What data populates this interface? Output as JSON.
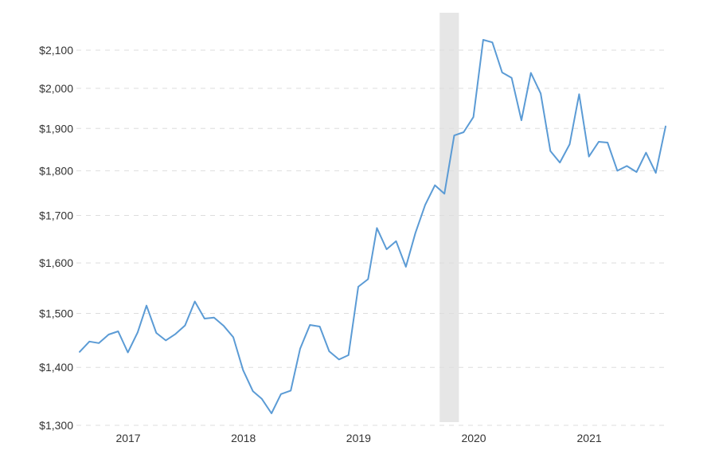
{
  "chart_data": {
    "type": "line",
    "title": "",
    "xlabel": "",
    "ylabel": "",
    "log_scale_y": true,
    "ylim": [
      1300,
      2150
    ],
    "yticks": [
      1300,
      1400,
      1500,
      1600,
      1700,
      1800,
      1900,
      2000,
      2100
    ],
    "ytick_labels": [
      "$1,300",
      "$1,400",
      "$1,500",
      "$1,600",
      "$1,700",
      "$1,800",
      "$1,900",
      "$2,000",
      "$2,100"
    ],
    "xlim": [
      "2016-07-31",
      "2021-08-31"
    ],
    "xticks": [
      "2017-01-01",
      "2018-01-01",
      "2019-01-01",
      "2020-01-01",
      "2021-01-01"
    ],
    "xtick_labels": [
      "2017",
      "2018",
      "2019",
      "2020",
      "2021"
    ],
    "grid": "horizontal-dashed",
    "recession_band": {
      "start": "2019-09-15",
      "end": "2019-11-15"
    },
    "series": [
      {
        "color": "#5b9bd5",
        "x": [
          "2016-07-31",
          "2016-08-31",
          "2016-09-30",
          "2016-10-31",
          "2016-11-30",
          "2016-12-31",
          "2017-01-31",
          "2017-02-28",
          "2017-03-31",
          "2017-04-30",
          "2017-05-31",
          "2017-06-30",
          "2017-07-31",
          "2017-08-31",
          "2017-09-30",
          "2017-10-31",
          "2017-11-30",
          "2017-12-31",
          "2018-01-31",
          "2018-02-28",
          "2018-03-31",
          "2018-04-30",
          "2018-05-31",
          "2018-06-30",
          "2018-07-31",
          "2018-08-31",
          "2018-09-30",
          "2018-10-31",
          "2018-11-30",
          "2018-12-31",
          "2019-01-31",
          "2019-02-28",
          "2019-03-31",
          "2019-04-30",
          "2019-05-31",
          "2019-06-30",
          "2019-07-31",
          "2019-08-31",
          "2019-09-30",
          "2019-10-31",
          "2019-11-30",
          "2019-12-31",
          "2020-01-31",
          "2020-02-29",
          "2020-03-31",
          "2020-04-30",
          "2020-05-31",
          "2020-06-30",
          "2020-07-31",
          "2020-08-31",
          "2020-09-30",
          "2020-10-31",
          "2020-11-30",
          "2020-12-31",
          "2021-01-31",
          "2021-02-28",
          "2021-03-31",
          "2021-04-30",
          "2021-05-31",
          "2021-06-30",
          "2021-07-31",
          "2021-08-31"
        ],
        "y": [
          1428,
          1447,
          1444,
          1460,
          1466,
          1427,
          1464,
          1515,
          1463,
          1449,
          1461,
          1477,
          1523,
          1490,
          1492,
          1476,
          1455,
          1395,
          1358,
          1345,
          1320,
          1353,
          1359,
          1434,
          1478,
          1475,
          1429,
          1414,
          1422,
          1552,
          1567,
          1673,
          1628,
          1645,
          1592,
          1662,
          1723,
          1767,
          1748,
          1883,
          1891,
          1928,
          2128,
          2121,
          2041,
          2027,
          1920,
          2040,
          1987,
          1846,
          1819,
          1862,
          1985,
          1833,
          1868,
          1866,
          1800,
          1811,
          1797,
          1842,
          1795,
          1905
        ]
      }
    ]
  }
}
